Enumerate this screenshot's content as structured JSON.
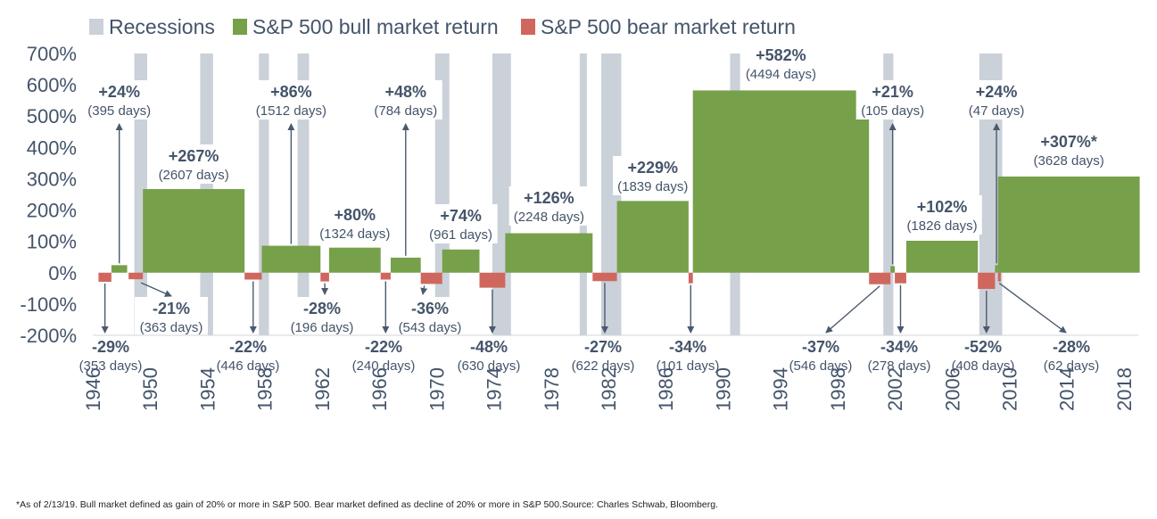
{
  "chart_data": {
    "type": "bar",
    "title": "",
    "xlabel": "",
    "ylabel": "",
    "ylim": [
      -200,
      700
    ],
    "xlim": [
      1946,
      2019
    ],
    "yticks": [
      "700%",
      "600%",
      "500%",
      "400%",
      "300%",
      "200%",
      "100%",
      "0%",
      "-100%",
      "-200%"
    ],
    "xticks": [
      "1946",
      "1950",
      "1954",
      "1958",
      "1962",
      "1966",
      "1970",
      "1974",
      "1978",
      "1982",
      "1986",
      "1990",
      "1994",
      "1998",
      "2002",
      "2006",
      "2010",
      "2014",
      "2018"
    ],
    "legend": [
      {
        "name": "Recessions",
        "color": "#cbd1d9"
      },
      {
        "name": "S&P 500 bull market return",
        "color": "#76a04a"
      },
      {
        "name": "S&P 500 bear market return",
        "color": "#d0675e"
      }
    ],
    "recessions": [
      {
        "start": 1948.9,
        "end": 1949.8
      },
      {
        "start": 1953.5,
        "end": 1954.4
      },
      {
        "start": 1957.6,
        "end": 1958.3
      },
      {
        "start": 1960.3,
        "end": 1961.1
      },
      {
        "start": 1969.9,
        "end": 1970.9
      },
      {
        "start": 1973.9,
        "end": 1975.2
      },
      {
        "start": 1980.0,
        "end": 1980.5
      },
      {
        "start": 1981.5,
        "end": 1982.9
      },
      {
        "start": 1990.5,
        "end": 1991.2
      },
      {
        "start": 2001.2,
        "end": 2001.9
      },
      {
        "start": 2007.9,
        "end": 2009.5
      }
    ],
    "bull_markets": [
      {
        "start": 1947.3,
        "end": 1948.4,
        "value": 24,
        "label": "+24%",
        "days": "(395 days)"
      },
      {
        "start": 1949.5,
        "end": 1956.6,
        "value": 267,
        "label": "+267%",
        "days": "(2607 days)"
      },
      {
        "start": 1957.8,
        "end": 1961.9,
        "value": 86,
        "label": "+86%",
        "days": "(1512 days)"
      },
      {
        "start": 1962.5,
        "end": 1966.1,
        "value": 80,
        "label": "+80%",
        "days": "(1324 days)"
      },
      {
        "start": 1966.8,
        "end": 1968.9,
        "value": 48,
        "label": "+48%",
        "days": "(784 days)"
      },
      {
        "start": 1970.4,
        "end": 1973.0,
        "value": 74,
        "label": "+74%",
        "days": "(961 days)"
      },
      {
        "start": 1974.8,
        "end": 1980.9,
        "value": 126,
        "label": "+126%",
        "days": "(2248 days)"
      },
      {
        "start": 1982.6,
        "end": 1987.6,
        "value": 229,
        "label": "+229%",
        "days": "(1839 days)"
      },
      {
        "start": 1987.9,
        "end": 2000.2,
        "value": 582,
        "label": "+582%",
        "days": "(4494 days)"
      },
      {
        "start": 2001.7,
        "end": 2002.0,
        "value": 21,
        "label": "+21%",
        "days": "(105 days)"
      },
      {
        "start": 2002.8,
        "end": 2007.8,
        "value": 102,
        "label": "+102%",
        "days": "(1826 days)"
      },
      {
        "start": 2009.0,
        "end": 2009.2,
        "value": 24,
        "label": "+24%",
        "days": "(47 days)"
      },
      {
        "start": 2009.2,
        "end": 2019.1,
        "value": 307,
        "label": "+307%*",
        "days": "(3628 days)"
      }
    ],
    "bear_markets": [
      {
        "start": 1946.4,
        "end": 1947.3,
        "value": -29,
        "label": "-29%",
        "days": "(353 days)"
      },
      {
        "start": 1948.5,
        "end": 1949.5,
        "value": -21,
        "label": "-21%",
        "days": "(363 days)"
      },
      {
        "start": 1956.6,
        "end": 1957.8,
        "value": -22,
        "label": "-22%",
        "days": "(446 days)"
      },
      {
        "start": 1961.9,
        "end": 1962.5,
        "value": -28,
        "label": "-28%",
        "days": "(196 days)"
      },
      {
        "start": 1966.1,
        "end": 1966.8,
        "value": -22,
        "label": "-22%",
        "days": "(240 days)"
      },
      {
        "start": 1968.9,
        "end": 1970.4,
        "value": -36,
        "label": "-36%",
        "days": "(543 days)"
      },
      {
        "start": 1973.0,
        "end": 1974.8,
        "value": -48,
        "label": "-48%",
        "days": "(630 days)"
      },
      {
        "start": 1980.9,
        "end": 1982.6,
        "value": -27,
        "label": "-27%",
        "days": "(622 days)"
      },
      {
        "start": 1987.6,
        "end": 1987.9,
        "value": -34,
        "label": "-34%",
        "days": "(101 days)"
      },
      {
        "start": 2000.2,
        "end": 2001.7,
        "value": -37,
        "label": "-37%",
        "days": "(546 days)"
      },
      {
        "start": 2002.0,
        "end": 2002.8,
        "value": -34,
        "label": "-34%",
        "days": "(278 days)"
      },
      {
        "start": 2007.8,
        "end": 2009.0,
        "value": -52,
        "label": "-52%",
        "days": "(408 days)"
      },
      {
        "start": 2009.2,
        "end": 2009.4,
        "value": -28,
        "label": "-28%",
        "days": "(62 days)"
      }
    ]
  },
  "footnote": "*As of 2/13/19. Bull market defined as gain of 20% or more in S&P 500. Bear market defined as decline of 20% or more in S&P 500.Source: Charles Schwab, Bloomberg."
}
